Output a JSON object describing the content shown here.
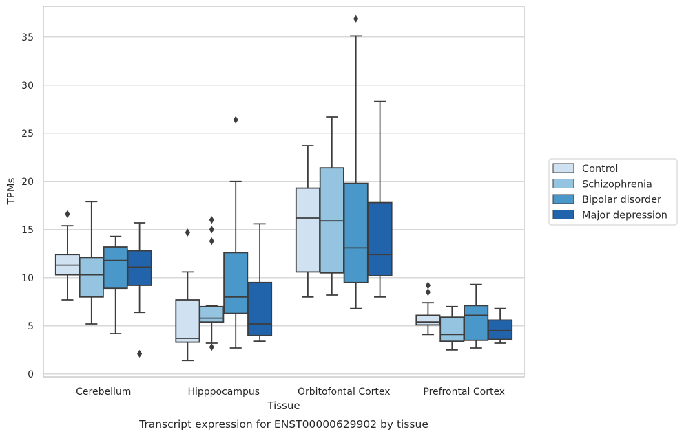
{
  "chart_data": {
    "type": "boxplot",
    "caption": "Transcript expression for ENST00000629902 by tissue",
    "xlabel": "Tissue",
    "ylabel": "TPMs",
    "ylim": [
      -0.3,
      38.2
    ],
    "yticks": [
      0,
      5,
      10,
      15,
      20,
      25,
      30,
      35
    ],
    "grid": "horizontal",
    "legend_position": "right",
    "categories": [
      "Cerebellum",
      "Hipppocampus",
      "Orbitofontal Cortex",
      "Prefrontal Cortex"
    ],
    "series": [
      {
        "name": "Control",
        "color": "#d0e1f2",
        "boxes": [
          {
            "whislo": 7.7,
            "q1": 10.3,
            "med": 11.3,
            "q3": 12.4,
            "whishi": 15.4,
            "fliers": [
              16.6
            ]
          },
          {
            "whislo": 1.4,
            "q1": 3.3,
            "med": 3.7,
            "q3": 7.7,
            "whishi": 10.6,
            "fliers": [
              14.7,
              14.7
            ]
          },
          {
            "whislo": 8.0,
            "q1": 10.6,
            "med": 16.2,
            "q3": 19.3,
            "whishi": 23.7,
            "fliers": []
          },
          {
            "whislo": 4.1,
            "q1": 5.1,
            "med": 5.4,
            "q3": 6.1,
            "whishi": 7.4,
            "fliers": [
              8.5,
              9.2
            ]
          }
        ]
      },
      {
        "name": "Schizophrenia",
        "color": "#94c4df",
        "boxes": [
          {
            "whislo": 5.2,
            "q1": 8.0,
            "med": 10.3,
            "q3": 12.1,
            "whishi": 17.9,
            "fliers": []
          },
          {
            "whislo": 3.2,
            "q1": 5.4,
            "med": 5.8,
            "q3": 7.0,
            "whishi": 7.1,
            "fliers": [
              2.8,
              13.8,
              15.0,
              16.0
            ]
          },
          {
            "whislo": 8.2,
            "q1": 10.5,
            "med": 15.9,
            "q3": 21.4,
            "whishi": 26.7,
            "fliers": []
          },
          {
            "whislo": 2.5,
            "q1": 3.4,
            "med": 4.1,
            "q3": 5.9,
            "whishi": 7.0,
            "fliers": []
          }
        ]
      },
      {
        "name": "Bipolar disorder",
        "color": "#4a98c9",
        "boxes": [
          {
            "whislo": 4.2,
            "q1": 8.9,
            "med": 11.8,
            "q3": 13.2,
            "whishi": 14.3,
            "fliers": []
          },
          {
            "whislo": 2.7,
            "q1": 6.3,
            "med": 8.0,
            "q3": 12.6,
            "whishi": 20.0,
            "fliers": [
              26.4
            ]
          },
          {
            "whislo": 6.8,
            "q1": 9.5,
            "med": 13.1,
            "q3": 19.8,
            "whishi": 35.1,
            "fliers": [
              36.9
            ]
          },
          {
            "whislo": 2.7,
            "q1": 3.5,
            "med": 6.1,
            "q3": 7.1,
            "whishi": 9.3,
            "fliers": []
          }
        ]
      },
      {
        "name": "Major depression",
        "color": "#2264ab",
        "boxes": [
          {
            "whislo": 6.4,
            "q1": 9.2,
            "med": 11.1,
            "q3": 12.8,
            "whishi": 15.7,
            "fliers": [
              2.1
            ]
          },
          {
            "whislo": 3.4,
            "q1": 4.0,
            "med": 5.2,
            "q3": 9.5,
            "whishi": 15.6,
            "fliers": []
          },
          {
            "whislo": 8.0,
            "q1": 10.2,
            "med": 12.4,
            "q3": 17.8,
            "whishi": 28.3,
            "fliers": []
          },
          {
            "whislo": 3.2,
            "q1": 3.6,
            "med": 4.5,
            "q3": 5.6,
            "whishi": 6.8,
            "fliers": []
          }
        ]
      }
    ]
  }
}
